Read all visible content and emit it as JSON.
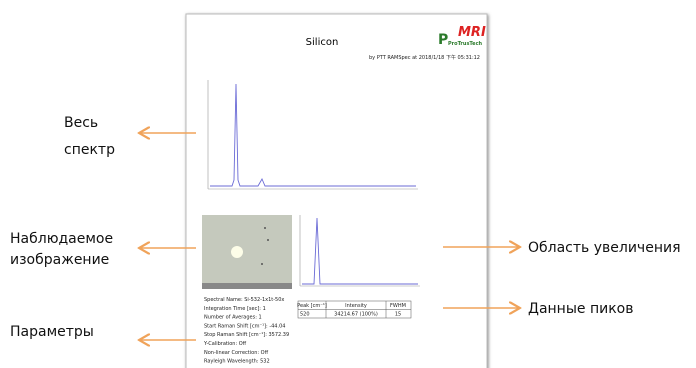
{
  "document": {
    "title": "Silicon",
    "logo": {
      "brand": "MRI",
      "company": "ProTrusTech"
    },
    "byline": "by PTT RAMSpec  at 2018/1/18 下午 05:31:12",
    "parameters": [
      "Spectral Name: Si-532-1x1t-50x",
      "Integration Time [sec]: 1",
      "Number of Averages: 1",
      "Start Raman Shift [cm⁻¹]: -44.04",
      "Stop Raman Shift [cm⁻¹]: 3572.39",
      "Y-Calibration: Off",
      "Non-linear Correction: Off",
      "Rayleigh Wavelength: 532"
    ],
    "table": {
      "header": [
        "Peak [cm⁻¹]",
        "Intensity",
        "FWHM"
      ],
      "rows": [
        [
          "520",
          "34214.67  (100%)",
          "15"
        ]
      ]
    }
  },
  "annotations": {
    "full_spectrum": [
      "Весь",
      "спектр"
    ],
    "observed_image": [
      "Наблюдаемое",
      "изображение"
    ],
    "parameters": "Параметры",
    "zoom_area": "Область увеличения",
    "peak_data": "Данные пиков"
  }
}
